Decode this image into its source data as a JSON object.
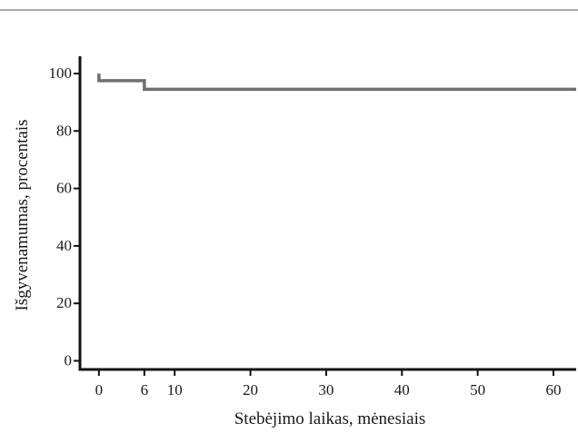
{
  "chart_data": {
    "type": "line",
    "xlabel": "Stebėjimo laikas, mėnesiais",
    "ylabel": "Išgyvenamumas, procentais",
    "xlim": [
      -2.5,
      63
    ],
    "ylim": [
      -3,
      106
    ],
    "x_ticks": [
      0,
      6,
      10,
      20,
      30,
      40,
      50,
      60
    ],
    "y_ticks": [
      0,
      20,
      40,
      60,
      80,
      100
    ],
    "series": [
      {
        "step": "post",
        "x": [
          0,
          0,
          6,
          63
        ],
        "y": [
          100,
          97.5,
          94.5,
          94.5
        ]
      }
    ],
    "line_color": "#6f6f6f",
    "axis_color": "#111111",
    "rule_color": "#555555",
    "grid": false,
    "legend": "none"
  }
}
